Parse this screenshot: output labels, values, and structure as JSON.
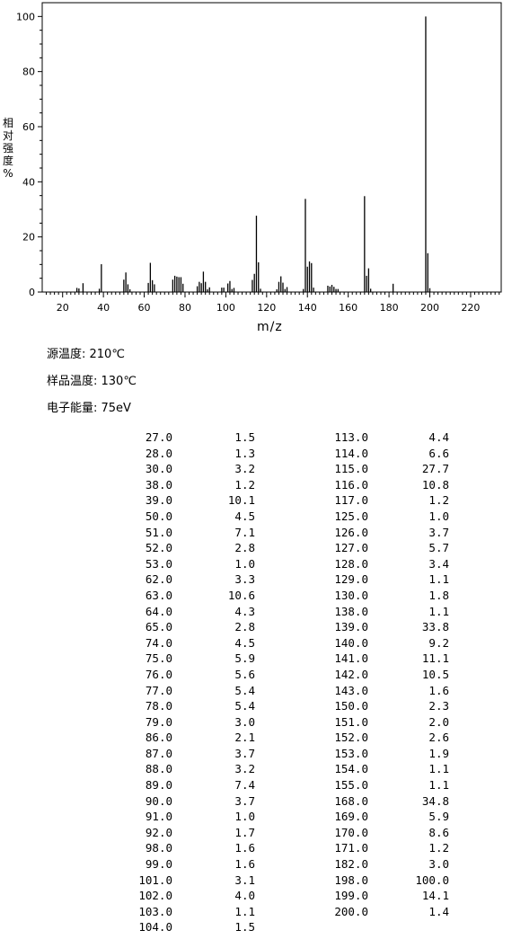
{
  "chart_data": {
    "type": "bar",
    "xlabel": "m/z",
    "ylabel": "相对强度/%",
    "xlim": [
      10,
      235
    ],
    "ylim": [
      0,
      105
    ],
    "xticks": [
      20,
      40,
      60,
      80,
      100,
      120,
      140,
      160,
      180,
      200,
      220
    ],
    "yticks": [
      0,
      20,
      40,
      60,
      80,
      100
    ],
    "grid": false,
    "x": [
      27,
      28,
      30,
      38,
      39,
      50,
      51,
      52,
      53,
      62,
      63,
      64,
      65,
      74,
      75,
      76,
      77,
      78,
      79,
      86,
      87,
      88,
      89,
      90,
      91,
      92,
      98,
      99,
      101,
      102,
      103,
      104,
      113,
      114,
      115,
      116,
      117,
      125,
      126,
      127,
      128,
      129,
      130,
      138,
      139,
      140,
      141,
      142,
      143,
      150,
      151,
      152,
      153,
      154,
      155,
      168,
      169,
      170,
      171,
      182,
      198,
      199,
      200
    ],
    "values": [
      1.5,
      1.3,
      3.2,
      1.2,
      10.1,
      4.5,
      7.1,
      2.8,
      1.0,
      3.3,
      10.6,
      4.3,
      2.8,
      4.5,
      5.9,
      5.6,
      5.4,
      5.4,
      3.0,
      2.1,
      3.7,
      3.2,
      7.4,
      3.7,
      1.0,
      1.7,
      1.6,
      1.6,
      3.1,
      4.0,
      1.1,
      1.5,
      4.4,
      6.6,
      27.7,
      10.8,
      1.2,
      1.0,
      3.7,
      5.7,
      3.4,
      1.1,
      1.8,
      1.1,
      33.8,
      9.2,
      11.1,
      10.5,
      1.6,
      2.3,
      2.0,
      2.6,
      1.9,
      1.1,
      1.1,
      34.8,
      5.9,
      8.6,
      1.2,
      3.0,
      100.0,
      14.1,
      1.4
    ]
  },
  "ylabel_chars": [
    "相",
    "对",
    "强",
    "度",
    "%"
  ],
  "conditions": {
    "source_temp": "源温度: 210℃",
    "sample_temp": "样品温度: 130℃",
    "electron_energy": "电子能量: 75eV"
  },
  "table": {
    "rows": [
      [
        "27.0",
        "1.5",
        "113.0",
        "4.4"
      ],
      [
        "28.0",
        "1.3",
        "114.0",
        "6.6"
      ],
      [
        "30.0",
        "3.2",
        "115.0",
        "27.7"
      ],
      [
        "38.0",
        "1.2",
        "116.0",
        "10.8"
      ],
      [
        "39.0",
        "10.1",
        "117.0",
        "1.2"
      ],
      [
        "50.0",
        "4.5",
        "125.0",
        "1.0"
      ],
      [
        "51.0",
        "7.1",
        "126.0",
        "3.7"
      ],
      [
        "52.0",
        "2.8",
        "127.0",
        "5.7"
      ],
      [
        "53.0",
        "1.0",
        "128.0",
        "3.4"
      ],
      [
        "62.0",
        "3.3",
        "129.0",
        "1.1"
      ],
      [
        "63.0",
        "10.6",
        "130.0",
        "1.8"
      ],
      [
        "64.0",
        "4.3",
        "138.0",
        "1.1"
      ],
      [
        "65.0",
        "2.8",
        "139.0",
        "33.8"
      ],
      [
        "74.0",
        "4.5",
        "140.0",
        "9.2"
      ],
      [
        "75.0",
        "5.9",
        "141.0",
        "11.1"
      ],
      [
        "76.0",
        "5.6",
        "142.0",
        "10.5"
      ],
      [
        "77.0",
        "5.4",
        "143.0",
        "1.6"
      ],
      [
        "78.0",
        "5.4",
        "150.0",
        "2.3"
      ],
      [
        "79.0",
        "3.0",
        "151.0",
        "2.0"
      ],
      [
        "86.0",
        "2.1",
        "152.0",
        "2.6"
      ],
      [
        "87.0",
        "3.7",
        "153.0",
        "1.9"
      ],
      [
        "88.0",
        "3.2",
        "154.0",
        "1.1"
      ],
      [
        "89.0",
        "7.4",
        "155.0",
        "1.1"
      ],
      [
        "90.0",
        "3.7",
        "168.0",
        "34.8"
      ],
      [
        "91.0",
        "1.0",
        "169.0",
        "5.9"
      ],
      [
        "92.0",
        "1.7",
        "170.0",
        "8.6"
      ],
      [
        "98.0",
        "1.6",
        "171.0",
        "1.2"
      ],
      [
        "99.0",
        "1.6",
        "182.0",
        "3.0"
      ],
      [
        "101.0",
        "3.1",
        "198.0",
        "100.0"
      ],
      [
        "102.0",
        "4.0",
        "199.0",
        "14.1"
      ],
      [
        "103.0",
        "1.1",
        "200.0",
        "1.4"
      ],
      [
        "104.0",
        "1.5",
        "",
        ""
      ]
    ]
  }
}
